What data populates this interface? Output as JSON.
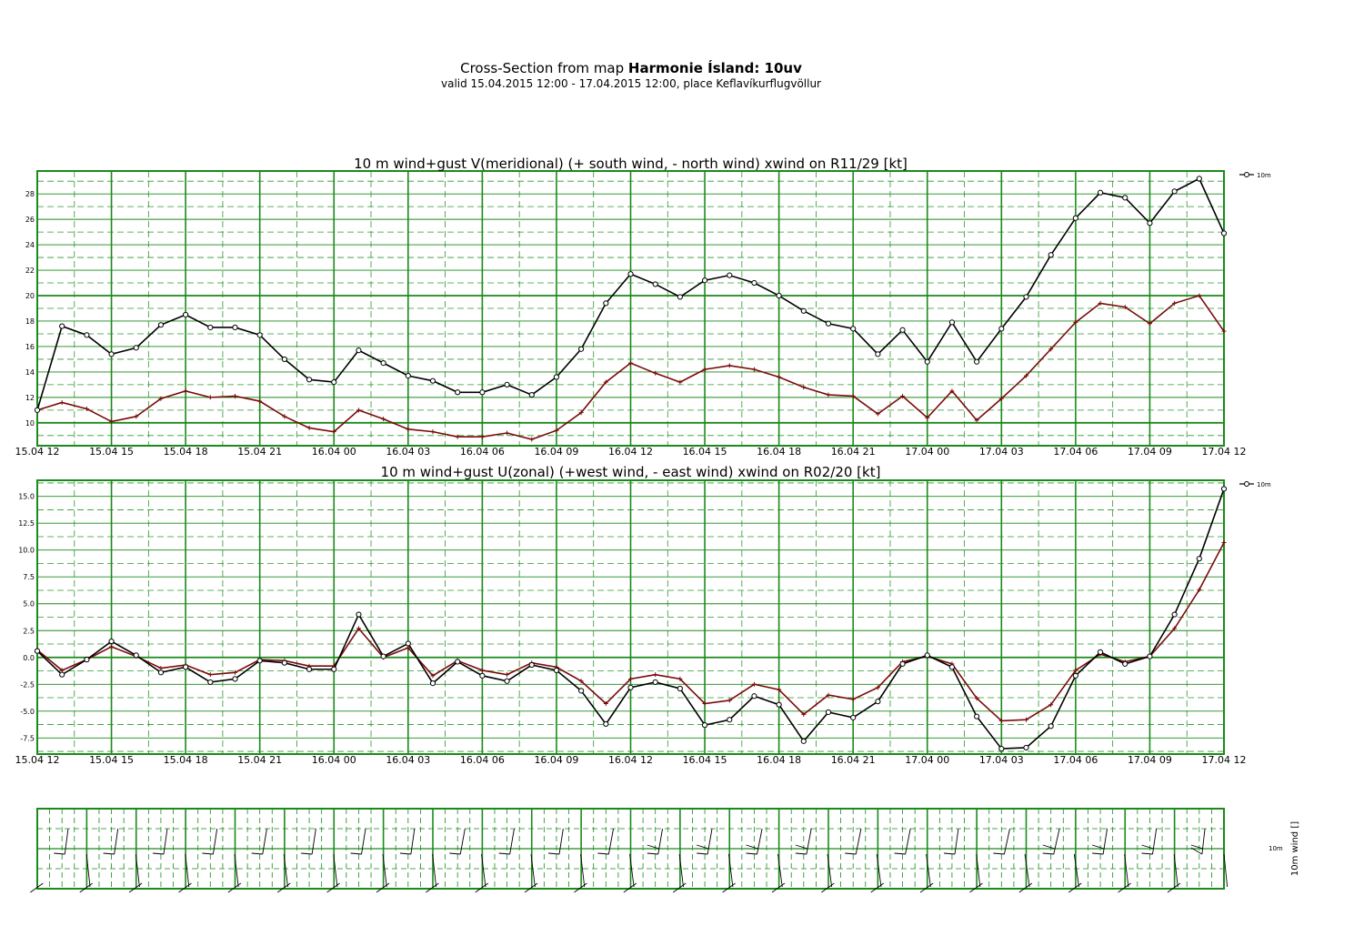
{
  "page": {
    "title_prefix": "Cross-Section from map ",
    "title_bold": "Harmonie Ísland: 10uv",
    "subtitle": "valid 15.04.2015 12:00 - 17.04.2015 12:00, place Keflavíkurflugvöllur"
  },
  "colors": {
    "grid": "#1a8a1a",
    "wind": "#000000",
    "gust": "#7a0a0a"
  },
  "chart_data": [
    {
      "type": "line",
      "title": "10 m wind+gust V(meridional) (+ south wind, - north wind) xwind on R11/29 [kt]",
      "x_tick_labels": [
        "15.04 12",
        "15.04 15",
        "15.04 18",
        "15.04 21",
        "16.04 00",
        "16.04 03",
        "16.04 06",
        "16.04 09",
        "16.04 12",
        "16.04 15",
        "16.04 18",
        "16.04 21",
        "17.04 00",
        "17.04 03",
        "17.04 06",
        "17.04 09",
        "17.04 12"
      ],
      "x_range_hours": [
        0,
        48
      ],
      "ylim": [
        8.2,
        29.8
      ],
      "y_ticks": [
        "10",
        "12",
        "14",
        "16",
        "18",
        "20",
        "22",
        "24",
        "26",
        "28"
      ],
      "legend": "10m",
      "legend_position": "top-right",
      "grid": true,
      "series": [
        {
          "name": "10m",
          "marker": "circle",
          "values": [
            11.0,
            17.6,
            16.9,
            15.4,
            15.9,
            17.7,
            18.5,
            17.5,
            17.5,
            16.9,
            15.0,
            13.4,
            13.2,
            15.7,
            14.7,
            13.7,
            13.3,
            12.4,
            12.4,
            13.0,
            12.2,
            13.6,
            15.8,
            19.4,
            21.7,
            20.9,
            19.9,
            21.2,
            21.6,
            21.0,
            20.0,
            18.8,
            17.8,
            17.4,
            15.4,
            17.3,
            14.8,
            17.9,
            14.8,
            17.4,
            19.9,
            23.2,
            26.1,
            28.1,
            27.7,
            25.7,
            28.2,
            29.2,
            24.9
          ]
        },
        {
          "values": [
            11.0,
            11.6,
            11.1,
            10.1,
            10.5,
            11.9,
            12.5,
            12.0,
            12.1,
            11.7,
            10.5,
            9.6,
            9.3,
            11.0,
            10.3,
            9.5,
            9.3,
            8.9,
            8.9,
            9.2,
            8.7,
            9.4,
            10.8,
            13.2,
            14.7,
            13.9,
            13.2,
            14.2,
            14.5,
            14.2,
            13.6,
            12.8,
            12.2,
            12.1,
            10.7,
            12.1,
            10.4,
            12.5,
            10.2,
            11.9,
            13.7,
            15.8,
            17.9,
            19.4,
            19.1,
            17.8,
            19.4,
            20.0,
            17.2
          ]
        }
      ]
    },
    {
      "type": "line",
      "title": "10 m wind+gust U(zonal) (+west wind, - east wind) xwind on R02/20 [kt]",
      "x_tick_labels": [
        "15.04 12",
        "15.04 15",
        "15.04 18",
        "15.04 21",
        "16.04 00",
        "16.04 03",
        "16.04 06",
        "16.04 09",
        "16.04 12",
        "16.04 15",
        "16.04 18",
        "16.04 21",
        "17.04 00",
        "17.04 03",
        "17.04 06",
        "17.04 09",
        "17.04 12"
      ],
      "x_range_hours": [
        0,
        48
      ],
      "ylim": [
        -9.0,
        16.5
      ],
      "y_ticks": [
        "-7.5",
        "-5.0",
        "-2.5",
        "0.0",
        "2.5",
        "5.0",
        "7.5",
        "10.0",
        "12.5",
        "15.0"
      ],
      "legend": "10m",
      "legend_position": "top-right",
      "grid": true,
      "series": [
        {
          "name": "10m",
          "marker": "circle",
          "values": [
            0.6,
            -1.6,
            -0.2,
            1.5,
            0.2,
            -1.4,
            -0.9,
            -2.3,
            -2.0,
            -0.3,
            -0.5,
            -1.1,
            -1.1,
            4.0,
            0.1,
            1.3,
            -2.4,
            -0.4,
            -1.7,
            -2.2,
            -0.7,
            -1.2,
            -3.1,
            -6.2,
            -2.8,
            -2.3,
            -2.9,
            -6.3,
            -5.8,
            -3.6,
            -4.4,
            -7.8,
            -5.1,
            -5.6,
            -4.1,
            -0.6,
            0.2,
            -0.9,
            -5.5,
            -8.5,
            -8.4,
            -6.4,
            -1.7,
            0.5,
            -0.6,
            0.1,
            4.0,
            9.2,
            15.7
          ]
        },
        {
          "values": [
            0.7,
            -1.2,
            -0.2,
            1.0,
            0.1,
            -1.0,
            -0.7,
            -1.6,
            -1.4,
            -0.2,
            -0.3,
            -0.8,
            -0.8,
            2.7,
            0.0,
            0.9,
            -1.7,
            -0.3,
            -1.2,
            -1.6,
            -0.5,
            -0.9,
            -2.2,
            -4.3,
            -2.0,
            -1.6,
            -2.0,
            -4.3,
            -4.0,
            -2.5,
            -3.0,
            -5.3,
            -3.5,
            -3.9,
            -2.8,
            -0.4,
            0.1,
            -0.6,
            -3.8,
            -5.9,
            -5.8,
            -4.4,
            -1.2,
            0.3,
            -0.4,
            0.1,
            2.7,
            6.3,
            10.7
          ]
        }
      ]
    },
    {
      "type": "wind_barbs",
      "ylabel": "10m wind []",
      "legend": "10m",
      "rows": 2,
      "barb_count": 24
    }
  ]
}
